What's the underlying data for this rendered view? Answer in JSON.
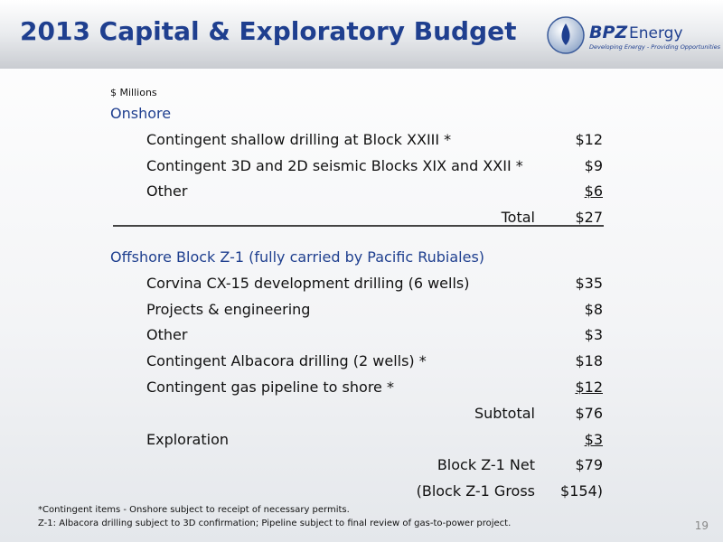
{
  "header": {
    "title": "2013 Capital & Exploratory Budget",
    "logo": {
      "brand": "BPZ",
      "brand_suffix": "Energy",
      "tagline": "Developing Energy - Providing Opportunities"
    }
  },
  "table": {
    "unit_note": "$ Millions",
    "sections": [
      {
        "heading": "Onshore",
        "rule_after": true,
        "rows": [
          {
            "label": "Contingent shallow drilling at Block XXIII *",
            "amount": "$12",
            "kind": "item",
            "underline": false
          },
          {
            "label": "Contingent 3D and 2D seismic Blocks XIX and XXII *",
            "amount": "$9",
            "kind": "item",
            "underline": false
          },
          {
            "label": "Other",
            "amount": "$6",
            "kind": "item",
            "underline": true
          },
          {
            "label": "Total",
            "amount": "$27",
            "kind": "total",
            "underline": false
          }
        ]
      },
      {
        "heading": "Offshore Block Z-1 (fully carried by Pacific Rubiales)",
        "rule_after": false,
        "rows": [
          {
            "label": "Corvina CX-15 development drilling (6 wells)",
            "amount": "$35",
            "kind": "item",
            "underline": false
          },
          {
            "label": "Projects & engineering",
            "amount": "$8",
            "kind": "item",
            "underline": false
          },
          {
            "label": "Other",
            "amount": "$3",
            "kind": "item",
            "underline": false
          },
          {
            "label": "Contingent Albacora drilling (2 wells) *",
            "amount": "$18",
            "kind": "item",
            "underline": false
          },
          {
            "label": "Contingent gas pipeline to shore *",
            "amount": "$12",
            "kind": "item",
            "underline": true
          },
          {
            "label": "Subtotal",
            "amount": "$76",
            "kind": "total",
            "underline": false
          },
          {
            "label": "Exploration",
            "amount": "$3",
            "kind": "item",
            "underline": true
          },
          {
            "label": "Block Z-1 Net",
            "amount": "$79",
            "kind": "total",
            "underline": false
          },
          {
            "label": "(Block Z-1 Gross",
            "amount": "$154)",
            "kind": "total",
            "underline": false
          }
        ]
      }
    ]
  },
  "footer": {
    "notes": [
      "*Contingent items - Onshore subject to receipt of necessary permits.",
      "Z-1: Albacora drilling subject to 3D confirmation;  Pipeline subject to final review of gas-to-power project."
    ],
    "page_number": "19"
  }
}
